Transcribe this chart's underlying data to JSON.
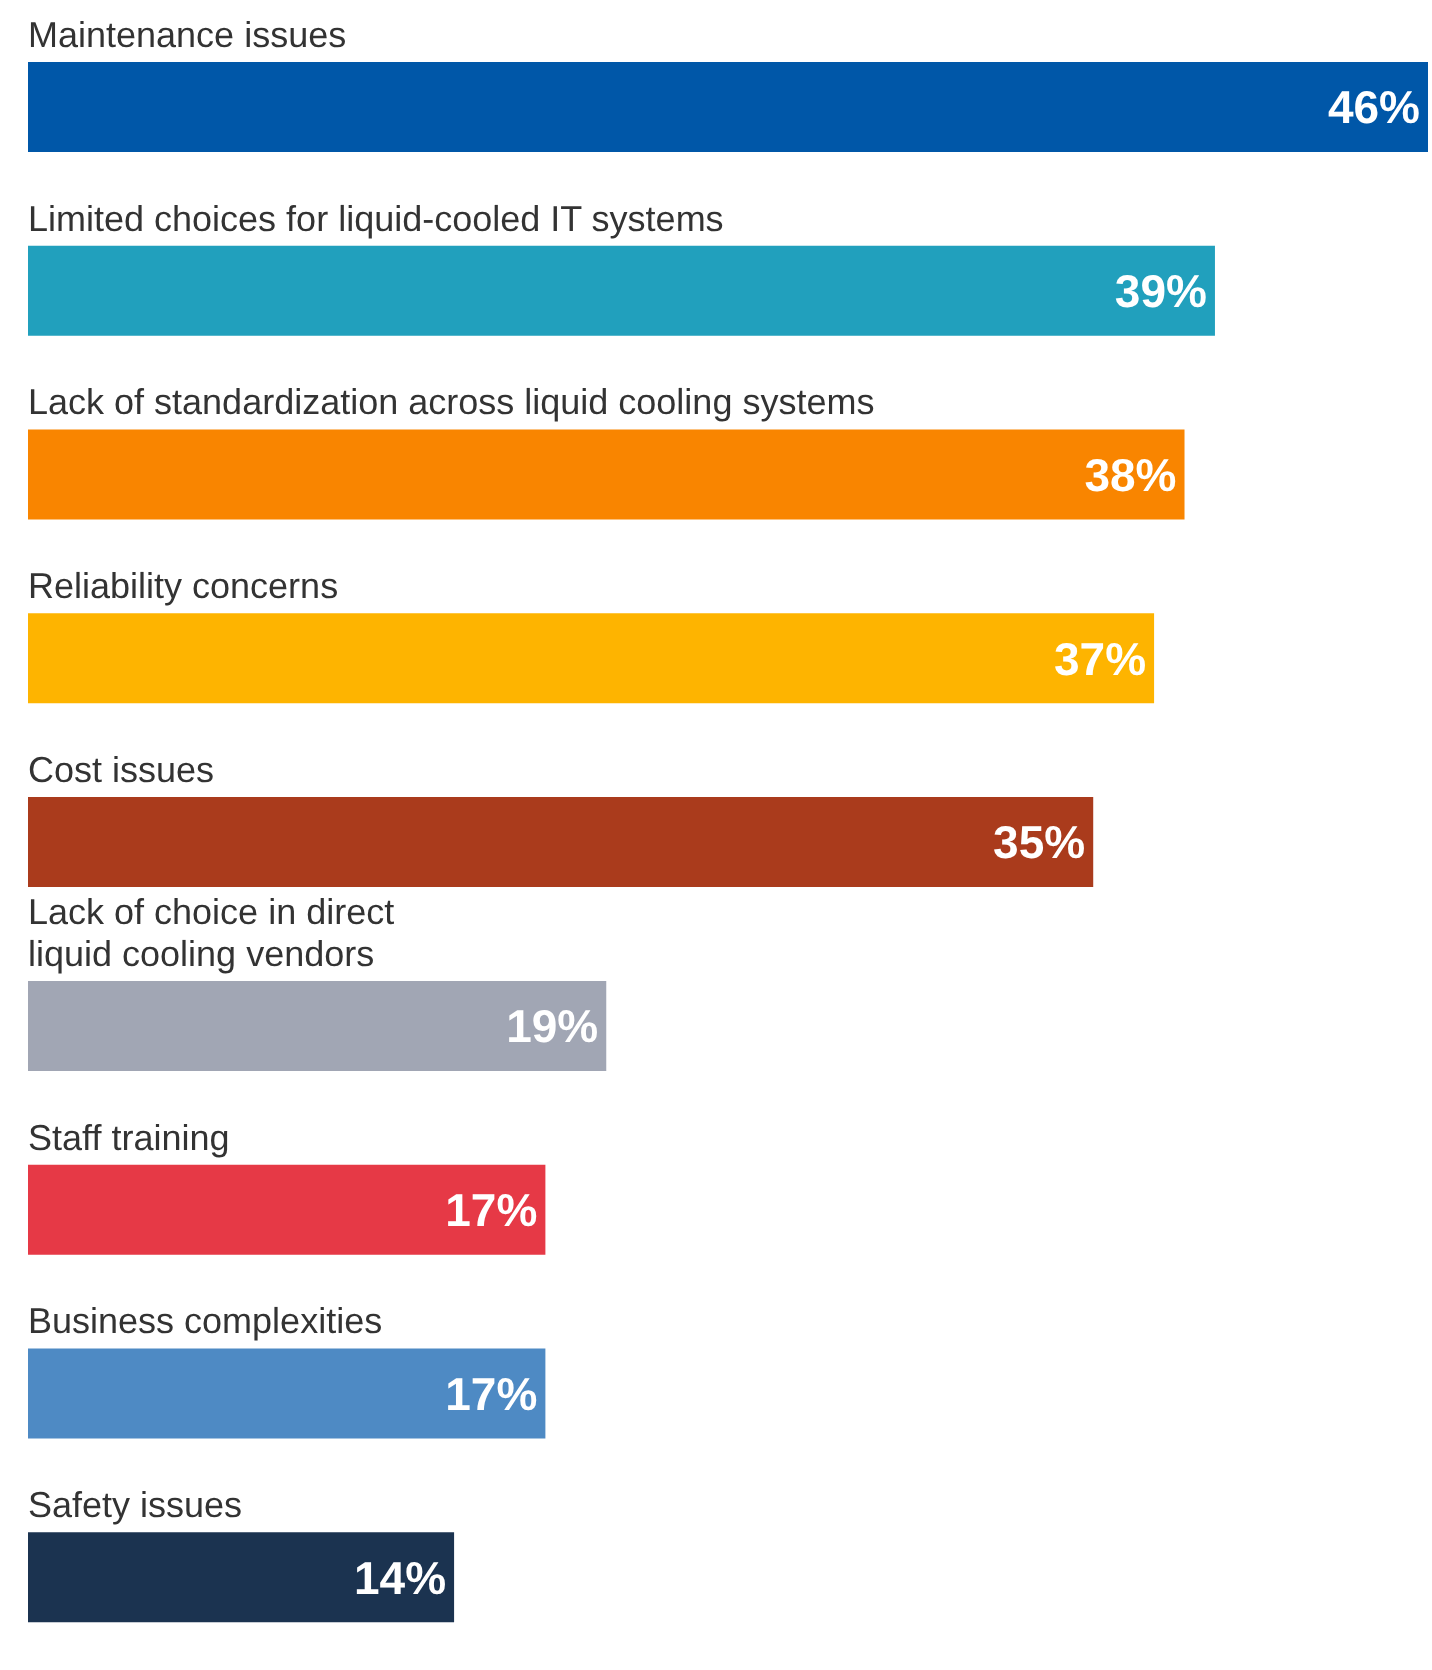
{
  "chart_data": {
    "type": "bar",
    "orientation": "horizontal",
    "categories": [
      "Maintenance issues",
      "Limited choices for liquid-cooled IT systems",
      "Lack of standardization across liquid cooling systems",
      "Reliability concerns",
      "Cost issues",
      "Lack of choice in direct\nliquid cooling vendors",
      "Staff training",
      "Business complexities",
      "Safety issues"
    ],
    "values": [
      46,
      39,
      38,
      37,
      35,
      19,
      17,
      17,
      14
    ],
    "value_labels": [
      "46%",
      "39%",
      "38%",
      "37%",
      "35%",
      "19%",
      "17%",
      "17%",
      "14%"
    ],
    "colors": [
      "#0057a8",
      "#21a0bd",
      "#f98500",
      "#feb400",
      "#aa3b1c",
      "#a1a6b4",
      "#e63946",
      "#4e8ac4",
      "#1b3350"
    ]
  }
}
